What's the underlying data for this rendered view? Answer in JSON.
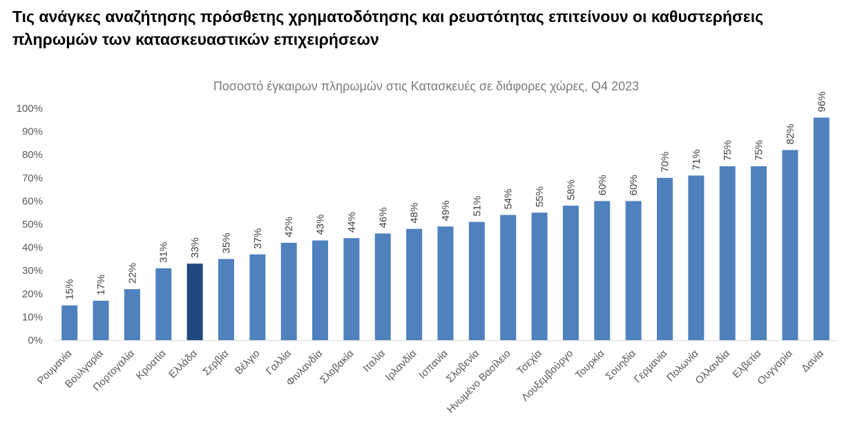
{
  "headline": "Τις ανάγκες αναζήτησης πρόσθετης χρηματοδότησης και ρευστότητας επιτείνουν οι καθυστερήσεις πληρωμών των κατασκευαστικών επιχειρήσεων",
  "chart_data": {
    "type": "bar",
    "title": "Ποσοστό έγκαιρων πληρωμών στις Κατασκευές σε διάφορες χώρες, Q4 2023",
    "xlabel": "",
    "ylabel": "",
    "ylim": [
      0,
      100
    ],
    "yticks": [
      "0%",
      "10%",
      "20%",
      "30%",
      "40%",
      "50%",
      "60%",
      "70%",
      "80%",
      "90%",
      "100%"
    ],
    "grid": false,
    "legend": "none",
    "categories": [
      "Ρουμανία",
      "Βουλγαρία",
      "Πορτογαλία",
      "Κροατία",
      "Ελλάδα",
      "Σερβία",
      "Βέλγιο",
      "Γαλλία",
      "Φινλανδία",
      "Σλοβακία",
      "Ιταλία",
      "Ιρλανδία",
      "Ισπανία",
      "Σλοβενία",
      "Ηνωμένο Βασίλειο",
      "Τσεχία",
      "Λουξεμβούργο",
      "Τουρκία",
      "Σουηδία",
      "Γερμανία",
      "Πολωνία",
      "Ολλανδία",
      "Ελβετία",
      "Ουγγαρία",
      "Δανία"
    ],
    "values": [
      15,
      17,
      22,
      31,
      33,
      35,
      37,
      42,
      43,
      44,
      46,
      48,
      49,
      51,
      54,
      55,
      58,
      60,
      60,
      70,
      71,
      75,
      75,
      82,
      96
    ],
    "data_labels": [
      "15%",
      "17%",
      "22%",
      "31%",
      "33%",
      "35%",
      "37%",
      "42%",
      "43%",
      "44%",
      "46%",
      "48%",
      "49%",
      "51%",
      "54%",
      "55%",
      "58%",
      "60%",
      "60%",
      "70%",
      "71%",
      "75%",
      "75%",
      "82%",
      "96%"
    ],
    "highlight_category": "Ελλάδα",
    "colors": {
      "bar": "#4f81bd",
      "highlight": "#1f497d",
      "axis": "#d9d9d9"
    }
  }
}
